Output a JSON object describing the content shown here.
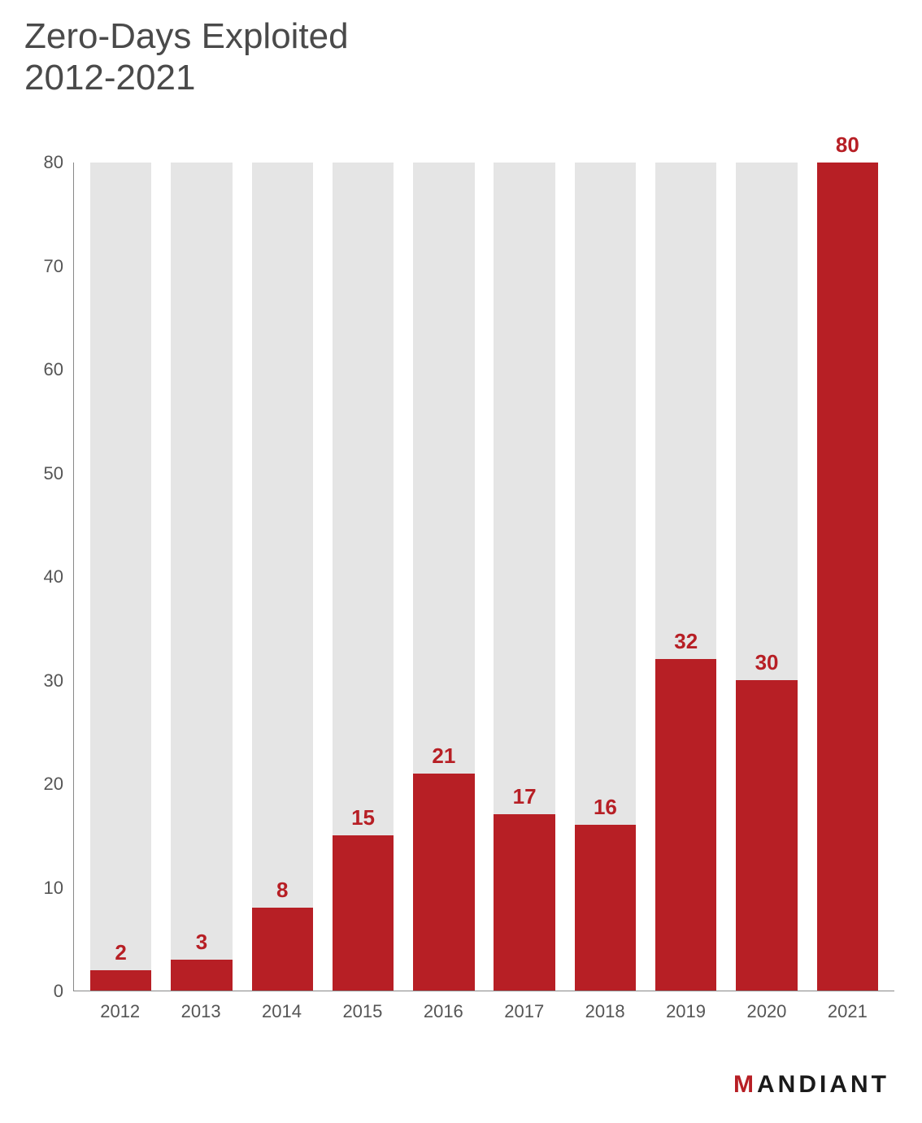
{
  "title_line1": "Zero-Days Exploited",
  "title_line2": "2012-2021",
  "title_fontsize": 44,
  "title_color": "#4a4a4a",
  "chart": {
    "type": "bar",
    "categories": [
      "2012",
      "2013",
      "2014",
      "2015",
      "2016",
      "2017",
      "2018",
      "2019",
      "2020",
      "2021"
    ],
    "values": [
      2,
      3,
      8,
      15,
      21,
      17,
      16,
      32,
      30,
      80
    ],
    "bar_color": "#b71f25",
    "track_color": "#e5e5e5",
    "value_label_color": "#b71f25",
    "value_label_fontsize": 26,
    "value_label_fontweight": 700,
    "ymin": 0,
    "ymax": 80,
    "ytick_step": 10,
    "yticks": [
      0,
      10,
      20,
      30,
      40,
      50,
      60,
      70,
      80
    ],
    "axis_color": "#888888",
    "tick_label_color": "#555555",
    "tick_label_fontsize": 22,
    "background_color": "#ffffff",
    "bar_width_ratio": 0.76
  },
  "brand": {
    "text": "MANDIANT",
    "color": "#1a1a1a",
    "accent_color": "#b71f25",
    "fontsize": 30,
    "letter_spacing": 4
  }
}
